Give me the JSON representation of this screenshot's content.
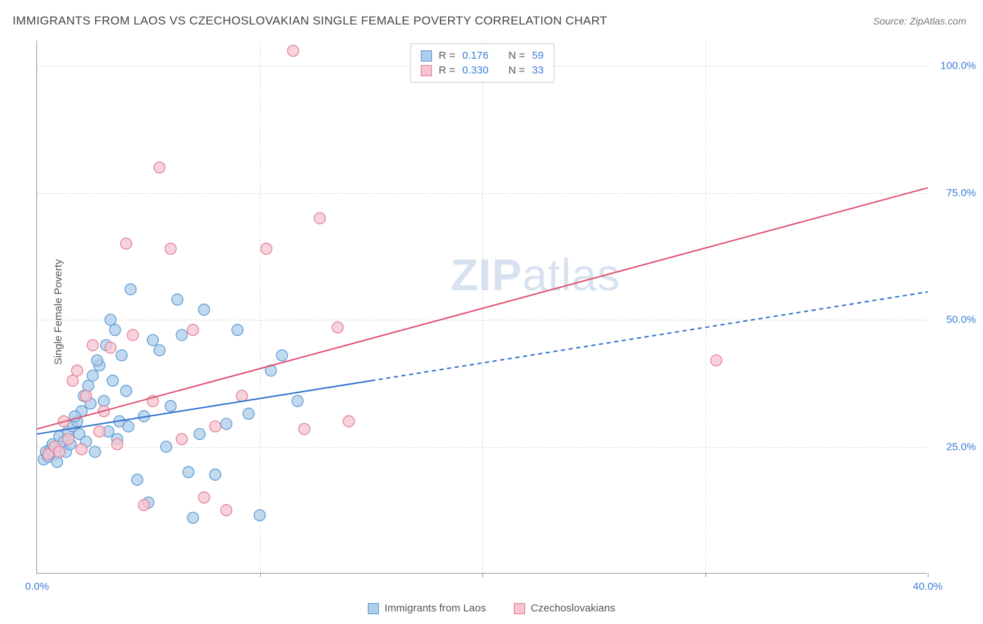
{
  "title": "IMMIGRANTS FROM LAOS VS CZECHOSLOVAKIAN SINGLE FEMALE POVERTY CORRELATION CHART",
  "source_label": "Source: ZipAtlas.com",
  "y_axis_label": "Single Female Poverty",
  "watermark_zip": "ZIP",
  "watermark_atlas": "atlas",
  "chart": {
    "type": "scatter",
    "xlim": [
      0,
      40
    ],
    "ylim": [
      0,
      105
    ],
    "x_ticks": [
      0,
      10,
      20,
      30,
      40
    ],
    "x_tick_labels": [
      "0.0%",
      "",
      "",
      "",
      "40.0%"
    ],
    "y_ticks": [
      25,
      50,
      75,
      100
    ],
    "y_tick_labels": [
      "25.0%",
      "50.0%",
      "75.0%",
      "100.0%"
    ],
    "background_color": "#ffffff",
    "grid_color": "#dddddd",
    "axis_color": "#999999",
    "tick_label_color": "#3b7dd8",
    "tick_fontsize": 15,
    "title_color": "#444444",
    "title_fontsize": 17
  },
  "series": [
    {
      "name": "Immigrants from Laos",
      "label": "Immigrants from Laos",
      "r_label": "R =",
      "r_value": "0.176",
      "n_label": "N =",
      "n_value": "59",
      "marker_fill": "#aecdea",
      "marker_stroke": "#5a97d4",
      "marker_radius": 8,
      "line_color": "#2f6fd0",
      "line_width": 2,
      "line_solid_end_x": 15,
      "trend": {
        "x1": 0,
        "y1": 27.5,
        "x2": 40,
        "y2": 55.5
      },
      "points": [
        [
          0.3,
          22.5
        ],
        [
          0.4,
          24.0
        ],
        [
          0.5,
          23.0
        ],
        [
          0.6,
          24.5
        ],
        [
          0.7,
          25.5
        ],
        [
          0.8,
          23.5
        ],
        [
          0.9,
          22.0
        ],
        [
          1.0,
          27.0
        ],
        [
          1.1,
          25.0
        ],
        [
          1.2,
          26.0
        ],
        [
          1.3,
          24.0
        ],
        [
          1.4,
          28.0
        ],
        [
          1.5,
          25.5
        ],
        [
          1.6,
          29.0
        ],
        [
          1.8,
          30.0
        ],
        [
          1.9,
          27.5
        ],
        [
          2.0,
          32.0
        ],
        [
          2.1,
          35.0
        ],
        [
          2.2,
          26.0
        ],
        [
          2.3,
          37.0
        ],
        [
          2.5,
          39.0
        ],
        [
          2.6,
          24.0
        ],
        [
          2.8,
          41.0
        ],
        [
          3.0,
          34.0
        ],
        [
          3.1,
          45.0
        ],
        [
          3.2,
          28.0
        ],
        [
          3.3,
          50.0
        ],
        [
          3.5,
          48.0
        ],
        [
          3.7,
          30.0
        ],
        [
          3.8,
          43.0
        ],
        [
          4.0,
          36.0
        ],
        [
          4.2,
          56.0
        ],
        [
          4.5,
          18.5
        ],
        [
          4.8,
          31.0
        ],
        [
          5.0,
          14.0
        ],
        [
          5.2,
          46.0
        ],
        [
          5.5,
          44.0
        ],
        [
          5.8,
          25.0
        ],
        [
          6.0,
          33.0
        ],
        [
          6.3,
          54.0
        ],
        [
          6.5,
          47.0
        ],
        [
          6.8,
          20.0
        ],
        [
          7.0,
          11.0
        ],
        [
          7.3,
          27.5
        ],
        [
          7.5,
          52.0
        ],
        [
          8.0,
          19.5
        ],
        [
          8.5,
          29.5
        ],
        [
          9.0,
          48.0
        ],
        [
          9.5,
          31.5
        ],
        [
          10.0,
          11.5
        ],
        [
          10.5,
          40.0
        ],
        [
          11.0,
          43.0
        ],
        [
          11.7,
          34.0
        ],
        [
          2.4,
          33.5
        ],
        [
          3.4,
          38.0
        ],
        [
          4.1,
          29.0
        ],
        [
          1.7,
          31.0
        ],
        [
          2.7,
          42.0
        ],
        [
          3.6,
          26.5
        ]
      ]
    },
    {
      "name": "Czechoslovakians",
      "label": "Czechoslovakians",
      "r_label": "R =",
      "r_value": "0.330",
      "n_label": "N =",
      "n_value": "33",
      "marker_fill": "#f5c4cf",
      "marker_stroke": "#e27a94",
      "marker_radius": 8,
      "line_color": "#e0506f",
      "line_width": 2,
      "line_solid_end_x": 40,
      "trend": {
        "x1": 0,
        "y1": 28.5,
        "x2": 40,
        "y2": 76.0
      },
      "points": [
        [
          0.5,
          23.5
        ],
        [
          0.8,
          25.0
        ],
        [
          1.0,
          24.0
        ],
        [
          1.2,
          30.0
        ],
        [
          1.4,
          26.5
        ],
        [
          1.6,
          38.0
        ],
        [
          1.8,
          40.0
        ],
        [
          2.0,
          24.5
        ],
        [
          2.2,
          35.0
        ],
        [
          2.5,
          45.0
        ],
        [
          2.8,
          28.0
        ],
        [
          3.0,
          32.0
        ],
        [
          3.3,
          44.5
        ],
        [
          3.6,
          25.5
        ],
        [
          4.0,
          65.0
        ],
        [
          4.3,
          47.0
        ],
        [
          4.8,
          13.5
        ],
        [
          5.2,
          34.0
        ],
        [
          5.5,
          80.0
        ],
        [
          6.0,
          64.0
        ],
        [
          6.5,
          26.5
        ],
        [
          7.0,
          48.0
        ],
        [
          7.5,
          15.0
        ],
        [
          8.0,
          29.0
        ],
        [
          8.5,
          12.5
        ],
        [
          9.2,
          35.0
        ],
        [
          10.3,
          64.0
        ],
        [
          11.5,
          103.0
        ],
        [
          12.0,
          28.5
        ],
        [
          12.7,
          70.0
        ],
        [
          13.5,
          48.5
        ],
        [
          14.0,
          30.0
        ],
        [
          30.5,
          42.0
        ]
      ]
    }
  ],
  "legend_bottom": {
    "series1_label": "Immigrants from Laos",
    "series2_label": "Czechoslovakians"
  }
}
